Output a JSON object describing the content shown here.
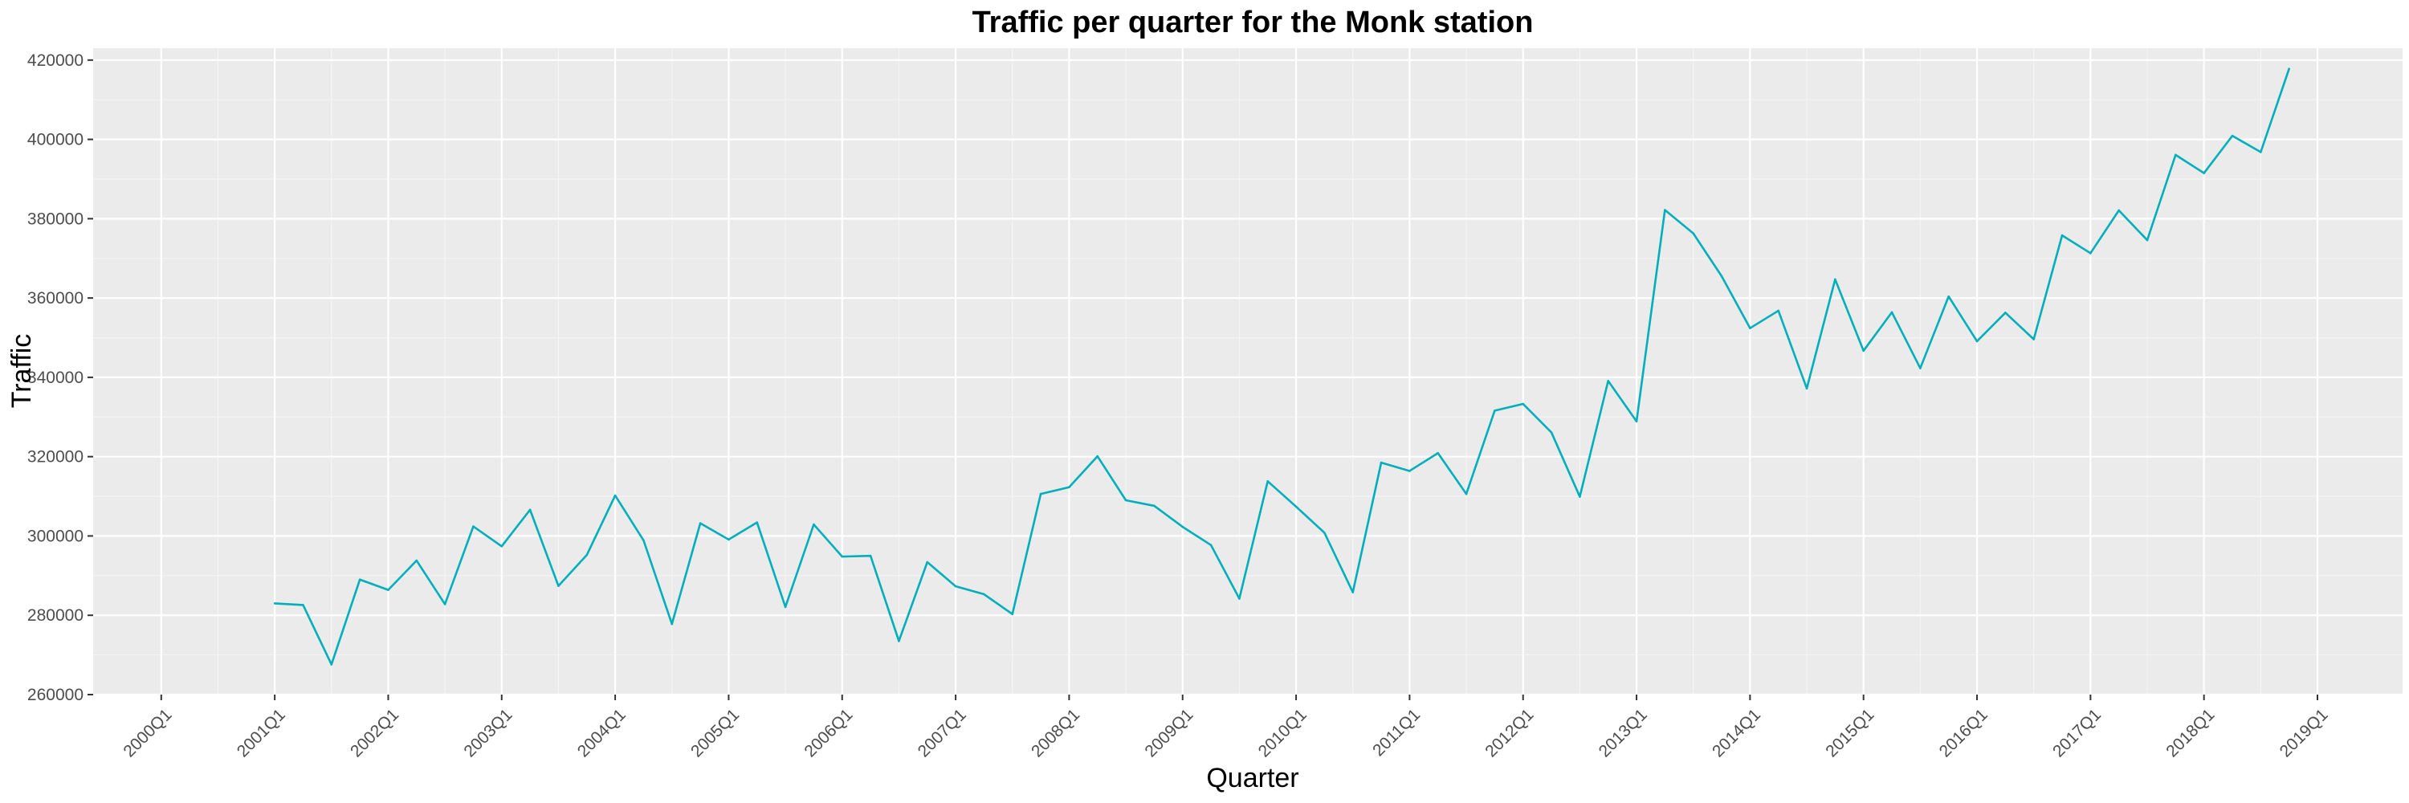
{
  "chart_data": {
    "type": "line",
    "title": "Traffic per quarter for the Monk station",
    "xlabel": "Quarter",
    "ylabel": "Traffic",
    "x_ticks": [
      "2000Q1",
      "2001Q1",
      "2002Q1",
      "2003Q1",
      "2004Q1",
      "2005Q1",
      "2006Q1",
      "2007Q1",
      "2008Q1",
      "2009Q1",
      "2010Q1",
      "2011Q1",
      "2012Q1",
      "2013Q1",
      "2014Q1",
      "2015Q1",
      "2016Q1",
      "2017Q1",
      "2018Q1",
      "2019Q1"
    ],
    "y_ticks": [
      "260000",
      "280000",
      "300000",
      "320000",
      "340000",
      "360000",
      "380000",
      "400000",
      "420000"
    ],
    "y_tick_values": [
      260000,
      280000,
      300000,
      320000,
      340000,
      360000,
      380000,
      400000,
      420000
    ],
    "xlim": [
      "2000Q1",
      "2019Q1"
    ],
    "ylim": [
      260000,
      423000
    ],
    "grid": true,
    "line_color": "#00afbb",
    "series": [
      {
        "start_quarter": "2001Q1",
        "values": [
          283000,
          282600,
          267600,
          289000,
          286400,
          293800,
          282800,
          302400,
          297400,
          306600,
          287400,
          295200,
          310200,
          298900,
          277800,
          303200,
          299100,
          303400,
          282100,
          302900,
          294800,
          295000,
          273500,
          293400,
          287300,
          285300,
          280300,
          310600,
          312300,
          320100,
          309000,
          307600,
          302300,
          297700,
          284200,
          313800,
          307400,
          300800,
          285800,
          318500,
          316400,
          320900,
          310600,
          331600,
          333300,
          326100,
          309900,
          339100,
          328900,
          382200,
          376300,
          365500,
          352400,
          356800,
          337200,
          364700,
          346700,
          356400,
          342300,
          360400,
          349100,
          356300,
          349600,
          375800,
          371300,
          382100,
          374600,
          396100,
          391500,
          400900,
          396800,
          417800
        ]
      }
    ]
  }
}
